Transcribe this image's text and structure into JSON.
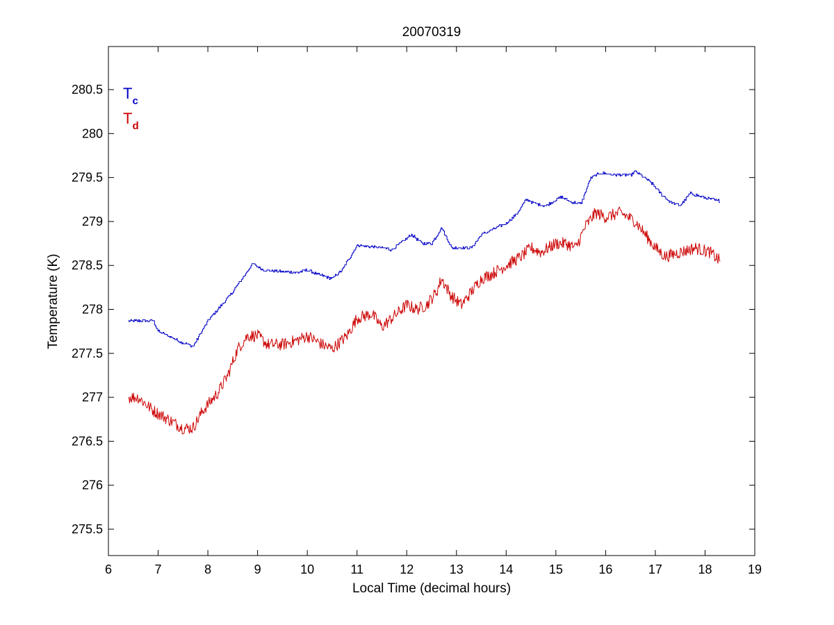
{
  "chart_data": {
    "type": "line",
    "title": "20070319",
    "xlabel": "Local Time (decimal hours)",
    "ylabel": "Temperature (K)",
    "xlim": [
      6,
      19
    ],
    "ylim": [
      275.2,
      280.99
    ],
    "xticks": [
      "6",
      "7",
      "8",
      "9",
      "10",
      "11",
      "12",
      "13",
      "14",
      "15",
      "16",
      "17",
      "18",
      "19"
    ],
    "yticks": [
      "275.5",
      "276",
      "276.5",
      "277",
      "277.5",
      "278",
      "278.5",
      "279",
      "279.5",
      "280",
      "280.5"
    ],
    "grid": false,
    "legend_position": "top-left",
    "series": [
      {
        "label": "T",
        "subscript": "c",
        "color": "#0000c8",
        "noise": 0.0,
        "x": [
          6.4,
          6.9,
          7.0,
          7.5,
          7.7,
          8.0,
          8.5,
          8.9,
          9.1,
          9.5,
          9.8,
          10.0,
          10.2,
          10.5,
          10.7,
          11.0,
          11.5,
          11.7,
          12.1,
          12.3,
          12.5,
          12.7,
          12.9,
          13.3,
          13.5,
          14.0,
          14.2,
          14.4,
          14.6,
          14.8,
          15.1,
          15.3,
          15.5,
          15.7,
          15.9,
          16.2,
          16.5,
          16.6,
          16.9,
          17.1,
          17.3,
          17.5,
          17.7,
          18.0,
          18.3
        ],
        "y": [
          277.87,
          277.87,
          277.75,
          277.62,
          277.58,
          277.87,
          278.2,
          278.52,
          278.45,
          278.43,
          278.42,
          278.45,
          278.4,
          278.35,
          278.45,
          278.73,
          278.7,
          278.68,
          278.85,
          278.75,
          278.75,
          278.93,
          278.7,
          278.7,
          278.85,
          278.98,
          279.08,
          279.25,
          279.2,
          279.18,
          279.28,
          279.22,
          279.2,
          279.5,
          279.55,
          279.53,
          279.53,
          279.57,
          279.45,
          279.32,
          279.22,
          279.18,
          279.32,
          279.27,
          279.23
        ]
      },
      {
        "label": "T",
        "subscript": "d",
        "color": "#cc0000",
        "noise": 0.07,
        "x": [
          6.4,
          6.6,
          6.9,
          7.2,
          7.5,
          7.7,
          7.9,
          8.2,
          8.4,
          8.6,
          8.8,
          9.0,
          9.2,
          9.5,
          9.8,
          10.0,
          10.3,
          10.5,
          10.8,
          11.0,
          11.3,
          11.5,
          11.7,
          12.0,
          12.2,
          12.4,
          12.6,
          12.7,
          12.9,
          13.1,
          13.3,
          13.5,
          13.7,
          14.0,
          14.3,
          14.5,
          14.7,
          15.0,
          15.2,
          15.4,
          15.6,
          15.8,
          16.0,
          16.3,
          16.6,
          16.8,
          17.0,
          17.2,
          17.5,
          17.8,
          18.1,
          18.3
        ],
        "y": [
          277.0,
          277.0,
          276.85,
          276.75,
          276.65,
          276.65,
          276.85,
          277.05,
          277.25,
          277.55,
          277.7,
          277.7,
          277.6,
          277.6,
          277.65,
          277.7,
          277.6,
          277.55,
          277.7,
          277.9,
          277.95,
          277.8,
          277.9,
          278.05,
          278.0,
          278.05,
          278.2,
          278.35,
          278.15,
          278.05,
          278.2,
          278.35,
          278.4,
          278.5,
          278.6,
          278.7,
          278.65,
          278.75,
          278.75,
          278.7,
          278.95,
          279.1,
          279.05,
          279.1,
          279.0,
          278.85,
          278.7,
          278.6,
          278.65,
          278.7,
          278.65,
          278.55
        ]
      }
    ]
  }
}
